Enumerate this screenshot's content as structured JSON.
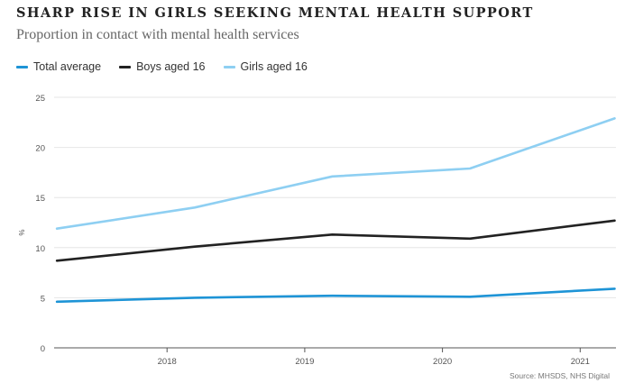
{
  "chart_data": {
    "type": "line",
    "title": "SHARP RISE IN GIRLS SEEKING MENTAL HEALTH SUPPORT",
    "subtitle": "Proportion in contact with mental health services",
    "xlabel": "",
    "ylabel": "%",
    "ylim": [
      0,
      25
    ],
    "yticks": [
      0,
      5,
      10,
      15,
      20,
      25
    ],
    "xticks": [
      2018,
      2019,
      2020,
      2021
    ],
    "xlim": [
      2017.18,
      2021.26
    ],
    "grid": true,
    "legend_position": "top-left",
    "x": [
      2017.2,
      2018.2,
      2019.2,
      2020.2,
      2021.25
    ],
    "series": [
      {
        "name": "Total average",
        "color": "#1e94d6",
        "values": [
          4.6,
          5.0,
          5.2,
          5.1,
          5.9
        ]
      },
      {
        "name": "Boys aged 16",
        "color": "#222222",
        "values": [
          8.7,
          10.1,
          11.3,
          10.9,
          12.7
        ]
      },
      {
        "name": "Girls aged 16",
        "color": "#8ecff2",
        "values": [
          11.9,
          14.0,
          17.1,
          17.9,
          22.9
        ]
      }
    ],
    "source": "Source: MHSDS, NHS Digital"
  }
}
